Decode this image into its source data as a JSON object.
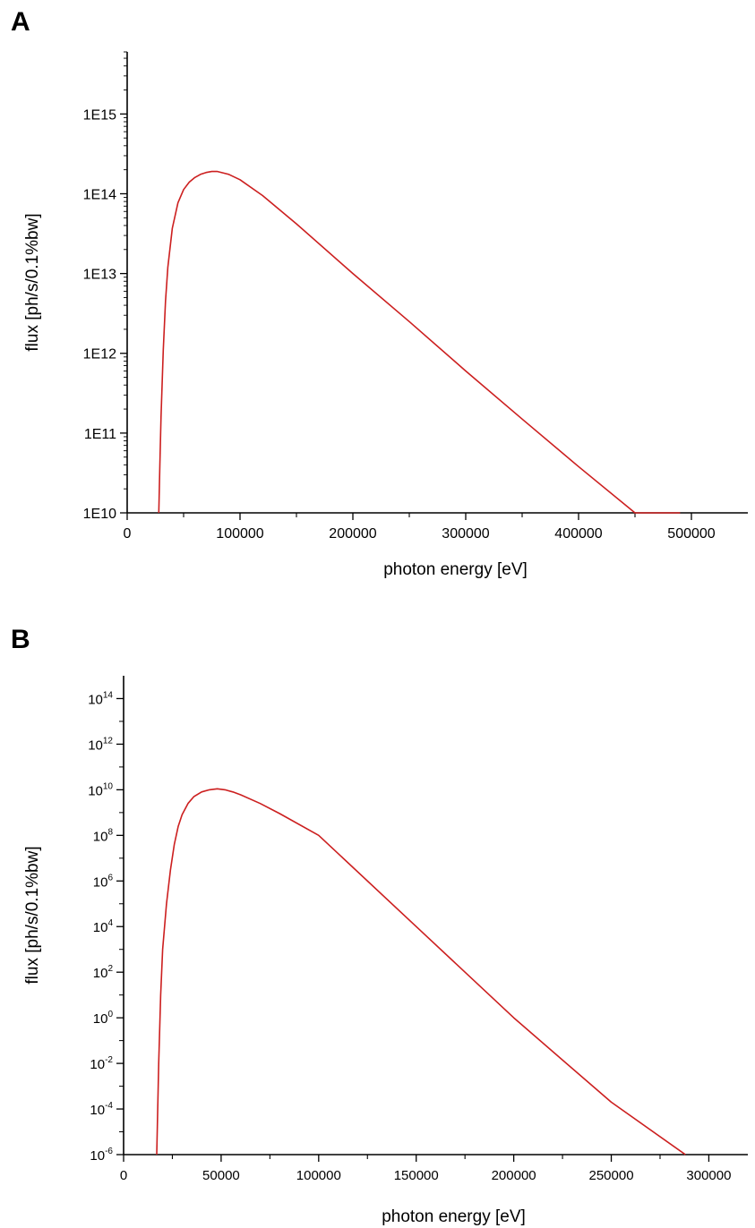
{
  "panels": {
    "a": "A",
    "b": "B"
  },
  "chart_data": [
    {
      "type": "line",
      "panel": "A",
      "title": "",
      "xlabel": "photon energy [eV]",
      "ylabel": "flux [ph/s/0.1%bw]",
      "xlim": [
        0,
        550000
      ],
      "ylim": [
        10000000000.0,
        6000000000000000.0
      ],
      "yscale": "log",
      "ytick_style": "E",
      "xticks": [
        0,
        100000,
        200000,
        300000,
        400000,
        500000
      ],
      "xtick_labels": [
        "0",
        "100000",
        "200000",
        "300000",
        "400000",
        "500000"
      ],
      "yticks": [
        10000000000.0,
        100000000000.0,
        1000000000000.0,
        10000000000000.0,
        100000000000000.0,
        1000000000000000.0
      ],
      "ytick_labels": [
        "1E10",
        "1E11",
        "1E12",
        "1E13",
        "1E14",
        "1E15"
      ],
      "grid": false,
      "line_color": "#cc1f1f",
      "series": [
        {
          "x": [
            28000,
            29000,
            30000,
            32000,
            34000,
            36000,
            40000,
            45000,
            50000,
            55000,
            60000,
            65000,
            70000,
            75000,
            80000,
            90000,
            100000,
            120000,
            150000,
            200000,
            250000,
            300000,
            350000,
            400000,
            450000,
            490000
          ],
          "y": [
            10000000000.0,
            40000000000.0,
            160000000000.0,
            1100000000000.0,
            4500000000000.0,
            12000000000000.0,
            37000000000000.0,
            77000000000000.0,
            113000000000000.0,
            140000000000000.0,
            160000000000000.0,
            175000000000000.0,
            185000000000000.0,
            190000000000000.0,
            190000000000000.0,
            175000000000000.0,
            150000000000000.0,
            95000000000000.0,
            42000000000000.0,
            10000000000000.0,
            2500000000000.0,
            600000000000.0,
            150000000000.0,
            38000000000.0,
            10000000000.0,
            10000000000.0
          ]
        }
      ]
    },
    {
      "type": "line",
      "panel": "B",
      "title": "",
      "xlabel": "photon energy [eV]",
      "ylabel": "flux [ph/s/0.1%bw]",
      "xlim": [
        0,
        320000
      ],
      "ylim": [
        1e-06,
        1000000000000000.0
      ],
      "yscale": "log",
      "ytick_style": "power",
      "xticks": [
        0,
        50000,
        100000,
        150000,
        200000,
        250000,
        300000
      ],
      "xtick_labels": [
        "0",
        "50000",
        "100000",
        "150000",
        "200000",
        "250000",
        "300000"
      ],
      "yticks": [
        1e-06,
        0.0001,
        0.01,
        1.0,
        100.0,
        10000.0,
        1000000.0,
        100000000.0,
        10000000000.0,
        1000000000000.0,
        100000000000000.0
      ],
      "ytick_labels": [
        {
          "base": "10",
          "exp": "-6"
        },
        {
          "base": "10",
          "exp": "-4"
        },
        {
          "base": "10",
          "exp": "-2"
        },
        {
          "base": "10",
          "exp": "0"
        },
        {
          "base": "10",
          "exp": "2"
        },
        {
          "base": "10",
          "exp": "4"
        },
        {
          "base": "10",
          "exp": "6"
        },
        {
          "base": "10",
          "exp": "8"
        },
        {
          "base": "10",
          "exp": "10"
        },
        {
          "base": "10",
          "exp": "12"
        },
        {
          "base": "10",
          "exp": "14"
        }
      ],
      "grid": false,
      "line_color": "#cc1f1f",
      "series": [
        {
          "x": [
            17000,
            18000,
            19000,
            20000,
            22000,
            24000,
            26000,
            28000,
            30000,
            33000,
            36000,
            40000,
            44000,
            48000,
            52000,
            56000,
            60000,
            70000,
            80000,
            100000,
            150000,
            200000,
            250000,
            288000
          ],
          "y": [
            1e-06,
            0.01,
            10.0,
            1000.0,
            100000.0,
            3000000.0,
            40000000.0,
            250000000.0,
            800000000.0,
            2500000000.0,
            5000000000.0,
            8000000000.0,
            10000000000.0,
            11000000000.0,
            10000000000.0,
            8000000000.0,
            6000000000.0,
            2500000000.0,
            900000000.0,
            100000000.0,
            10000.0,
            1,
            0.0002,
            1e-06
          ]
        }
      ]
    }
  ]
}
